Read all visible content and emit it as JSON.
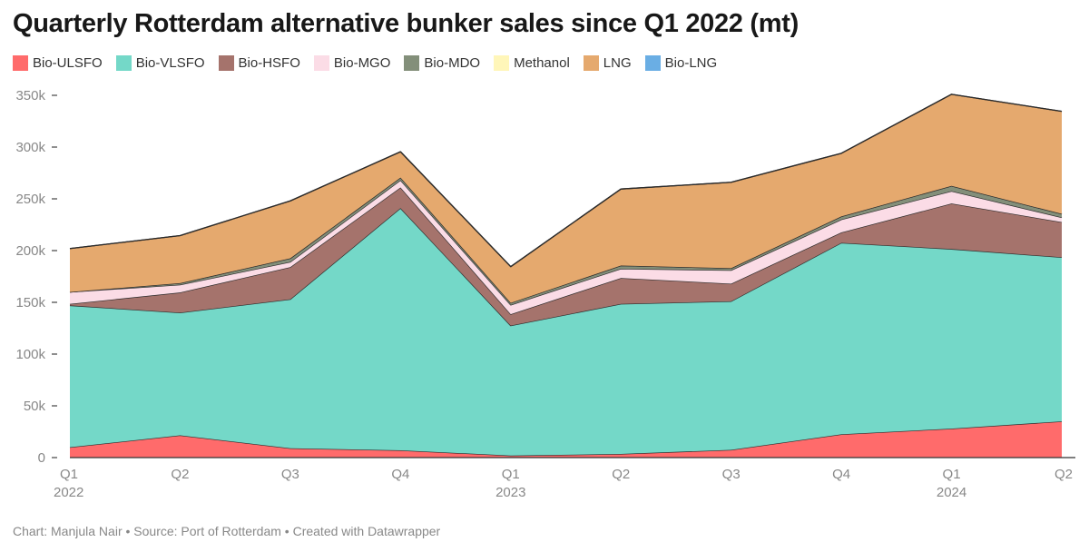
{
  "chart_data": {
    "type": "area",
    "stacked": true,
    "title": "Quarterly Rotterdam alternative bunker sales since Q1 2022 (mt)",
    "categories": [
      "Q1 2022",
      "Q2 2022",
      "Q3 2022",
      "Q4 2022",
      "Q1 2023",
      "Q2 2023",
      "Q3 2023",
      "Q4 2023",
      "Q1 2024",
      "Q2 2024"
    ],
    "x_tick_labels": [
      {
        "quarter": "Q1",
        "year": "2022"
      },
      {
        "quarter": "Q2",
        "year": ""
      },
      {
        "quarter": "Q3",
        "year": ""
      },
      {
        "quarter": "Q4",
        "year": ""
      },
      {
        "quarter": "Q1",
        "year": "2023"
      },
      {
        "quarter": "Q2",
        "year": ""
      },
      {
        "quarter": "Q3",
        "year": ""
      },
      {
        "quarter": "Q4",
        "year": ""
      },
      {
        "quarter": "Q1",
        "year": "2024"
      },
      {
        "quarter": "Q2",
        "year": ""
      }
    ],
    "ylim": [
      0,
      350000
    ],
    "y_ticks": [
      {
        "value": 0,
        "label": "0"
      },
      {
        "value": 50000,
        "label": "50k"
      },
      {
        "value": 100000,
        "label": "100k"
      },
      {
        "value": 150000,
        "label": "150k"
      },
      {
        "value": 200000,
        "label": "200k"
      },
      {
        "value": 250000,
        "label": "250k"
      },
      {
        "value": 300000,
        "label": "300k"
      },
      {
        "value": 350000,
        "label": "350k"
      }
    ],
    "series": [
      {
        "name": "Bio-ULSFO",
        "color": "#ff6b6b",
        "values": [
          10000,
          21500,
          9000,
          7000,
          2000,
          3500,
          7500,
          22500,
          28000,
          35000
        ]
      },
      {
        "name": "Bio-VLSFO",
        "color": "#74d8c8",
        "values": [
          137000,
          118500,
          144000,
          234000,
          125500,
          145000,
          143500,
          185000,
          173500,
          158500
        ]
      },
      {
        "name": "Bio-HSFO",
        "color": "#a5736c",
        "values": [
          1500,
          19500,
          31000,
          20000,
          11000,
          25000,
          17000,
          10000,
          44000,
          34000
        ]
      },
      {
        "name": "Bio-MGO",
        "color": "#fbdce6",
        "values": [
          11500,
          7500,
          5000,
          7000,
          9000,
          9000,
          13000,
          12500,
          12000,
          4500
        ]
      },
      {
        "name": "Bio-MDO",
        "color": "#838f7a",
        "values": [
          0,
          1500,
          3500,
          2500,
          2000,
          3000,
          2000,
          3000,
          5000,
          3500
        ]
      },
      {
        "name": "Methanol",
        "color": "#fff6b9",
        "values": [
          0,
          0,
          0,
          0,
          0,
          0,
          0,
          0,
          0,
          0
        ]
      },
      {
        "name": "LNG",
        "color": "#e5a96e",
        "values": [
          42000,
          46000,
          55500,
          25000,
          35000,
          74000,
          83000,
          61000,
          88500,
          99000
        ]
      },
      {
        "name": "Bio-LNG",
        "color": "#6aaee4",
        "values": [
          0,
          0,
          0,
          0,
          0,
          0,
          0,
          0,
          0,
          0
        ]
      }
    ],
    "xlabel": "",
    "ylabel": "",
    "legend_position": "top-left",
    "grid": false
  },
  "footer": "Chart: Manjula Nair • Source: Port of Rotterdam • Created with Datawrapper"
}
